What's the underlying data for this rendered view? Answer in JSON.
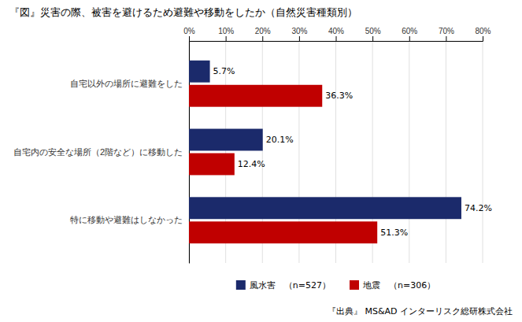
{
  "chart_data": {
    "type": "bar",
    "orientation": "horizontal",
    "title": "『図』災害の際、被害を避けるため避難や移動をしたか（自然災害種類別）",
    "categories": [
      "自宅以外の場所に避難をした",
      "自宅内の安全な場所（2階など）に移動した",
      "特に移動や避難はしなかった"
    ],
    "series": [
      {
        "name": "風水害　（n=527）",
        "color": "#1b2a6b",
        "values": [
          5.7,
          20.1,
          74.2
        ],
        "value_labels": [
          "5.7%",
          "20.1%",
          "74.2%"
        ]
      },
      {
        "name": "地震　（n=306）",
        "color": "#c00000",
        "values": [
          36.3,
          12.4,
          51.3
        ],
        "value_labels": [
          "36.3%",
          "12.4%",
          "51.3%"
        ]
      }
    ],
    "xlim": [
      0,
      80
    ],
    "xticks": [
      {
        "value": 0,
        "label": "0%"
      },
      {
        "value": 10,
        "label": "10%"
      },
      {
        "value": 20,
        "label": "20%"
      },
      {
        "value": 30,
        "label": "30%"
      },
      {
        "value": 40,
        "label": "40%"
      },
      {
        "value": 50,
        "label": "50%"
      },
      {
        "value": 60,
        "label": "60%"
      },
      {
        "value": 70,
        "label": "70%"
      },
      {
        "value": 80,
        "label": "80%"
      }
    ],
    "grid": true,
    "data_labels": true,
    "legend": "bottom",
    "annotations": [
      "『出典』 MS&AD インターリスク総研株式会社"
    ]
  }
}
